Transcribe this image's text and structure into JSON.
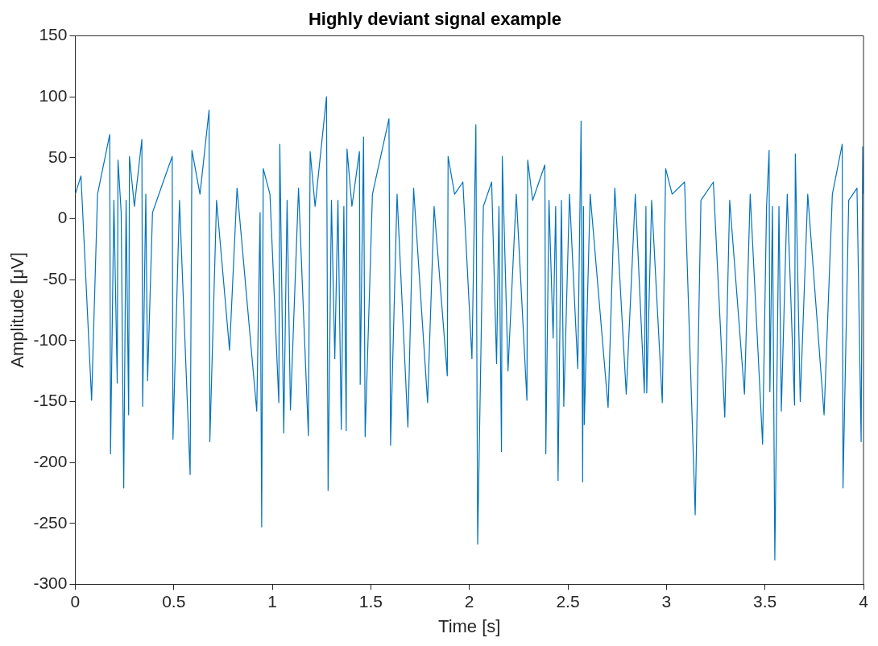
{
  "chart_data": {
    "type": "line",
    "title": "Highly deviant signal example",
    "xlabel": "Time [s]",
    "ylabel": "Amplitude [μV]",
    "xlim": [
      0,
      4
    ],
    "xticks": [
      0,
      0.5,
      1,
      1.5,
      2,
      2.5,
      3,
      3.5,
      4
    ],
    "ylim": [
      -300,
      150
    ],
    "yticks": [
      -300,
      -250,
      -200,
      -150,
      -100,
      -50,
      0,
      50,
      100,
      150
    ],
    "marker": "none",
    "line_style": "solid",
    "legend": false,
    "series": [
      {
        "color": "#0072bd",
        "x": [
          0,
          0.029,
          0.083,
          0.113,
          0.175,
          0.179,
          0.196,
          0.213,
          0.217,
          0.233,
          0.246,
          0.258,
          0.271,
          0.275,
          0.3,
          0.338,
          0.342,
          0.358,
          0.367,
          0.392,
          0.446,
          0.492,
          0.496,
          0.529,
          0.583,
          0.592,
          0.633,
          0.679,
          0.683,
          0.717,
          0.783,
          0.821,
          0.921,
          0.938,
          0.946,
          0.954,
          0.988,
          1.033,
          1.038,
          1.058,
          1.075,
          1.092,
          1.133,
          1.183,
          1.192,
          1.217,
          1.275,
          1.283,
          1.3,
          1.317,
          1.333,
          1.35,
          1.363,
          1.375,
          1.379,
          1.404,
          1.442,
          1.446,
          1.463,
          1.471,
          1.508,
          1.592,
          1.6,
          1.633,
          1.688,
          1.717,
          1.788,
          1.821,
          1.888,
          1.892,
          1.925,
          1.967,
          2.013,
          2.033,
          2.042,
          2.071,
          2.113,
          2.138,
          2.15,
          2.163,
          2.167,
          2.196,
          2.238,
          2.292,
          2.296,
          2.321,
          2.383,
          2.388,
          2.404,
          2.425,
          2.438,
          2.45,
          2.467,
          2.479,
          2.508,
          2.55,
          2.567,
          2.575,
          2.579,
          2.583,
          2.613,
          2.704,
          2.738,
          2.796,
          2.842,
          2.888,
          2.896,
          2.9,
          2.925,
          2.979,
          2.996,
          3.029,
          3.092,
          3.146,
          3.175,
          3.238,
          3.296,
          3.321,
          3.396,
          3.425,
          3.488,
          3.508,
          3.521,
          3.525,
          3.538,
          3.55,
          3.571,
          3.583,
          3.613,
          3.65,
          3.654,
          3.679,
          3.717,
          3.8,
          3.842,
          3.892,
          3.896,
          3.925,
          3.967,
          3.988,
          3.996,
          4
        ],
        "values": [
          20,
          35,
          -149,
          20,
          69,
          -193,
          15,
          -135,
          48,
          5,
          -221,
          15,
          -161,
          51,
          10,
          65,
          -154,
          20,
          -133,
          5,
          30,
          51,
          -181,
          15,
          -210,
          56,
          20,
          89,
          -183,
          15,
          -108,
          25,
          -158,
          5,
          -253,
          41,
          20,
          -151,
          61,
          -176,
          15,
          -157,
          25,
          -178,
          55,
          10,
          100,
          -223,
          15,
          -115,
          15,
          -173,
          10,
          -174,
          57,
          10,
          55,
          -136,
          67,
          -179,
          20,
          82,
          -186,
          20,
          -171,
          25,
          -151,
          10,
          -129,
          51,
          20,
          30,
          -115,
          77,
          -267,
          10,
          30,
          -119,
          10,
          -191,
          51,
          -125,
          20,
          -149,
          48,
          15,
          44,
          -193,
          15,
          -98,
          10,
          -215,
          15,
          -154,
          20,
          -123,
          80,
          -216,
          10,
          -169,
          20,
          -155,
          25,
          -144,
          20,
          -143,
          10,
          -143,
          15,
          -151,
          41,
          20,
          30,
          -243,
          15,
          30,
          -163,
          15,
          -144,
          20,
          -185,
          10,
          56,
          -142,
          10,
          -280,
          10,
          -158,
          20,
          -153,
          53,
          -150,
          20,
          -161,
          20,
          61,
          -221,
          15,
          25,
          -183,
          59,
          20
        ]
      }
    ]
  }
}
